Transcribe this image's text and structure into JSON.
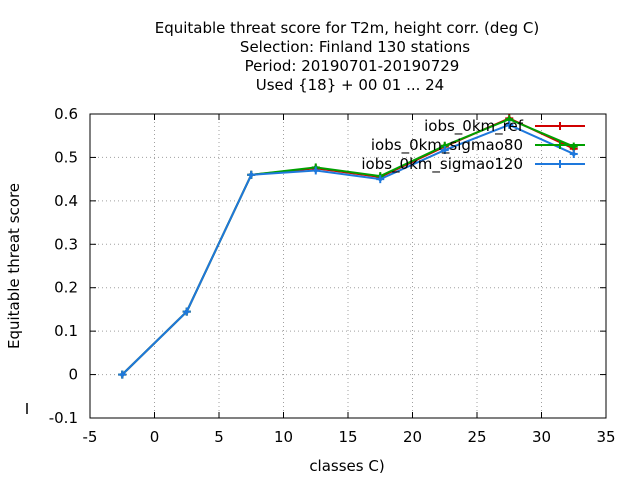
{
  "chart_data": {
    "type": "line",
    "title_lines": [
      "Equitable threat score  for T2m, height corr. (deg C)",
      "Selection: Finland    130 stations",
      "Period: 20190701-20190729",
      "Used {18} + 00 01 ... 24"
    ],
    "xlabel": "classes C)",
    "ylabel": "Equitable threat score",
    "xlim": [
      -5,
      35
    ],
    "ylim": [
      -0.1,
      0.6
    ],
    "xticks": [
      "-5",
      "0",
      "5",
      "10",
      "15",
      "20",
      "25",
      "30",
      "35"
    ],
    "yticks": [
      "-0.1",
      "0",
      "0.1",
      "0.2",
      "0.3",
      "0.4",
      "0.5",
      "0.6"
    ],
    "grid": true,
    "legend_position": "top-right",
    "series": [
      {
        "name": "iobs_0km_ref",
        "color": "#d00000",
        "x": [
          -2.5,
          2.5,
          7.5,
          12.5,
          17.5,
          22.5,
          27.5,
          32.5
        ],
        "y": [
          0.0,
          0.145,
          0.46,
          0.475,
          0.455,
          0.525,
          0.59,
          0.52
        ]
      },
      {
        "name": "iobs_0km_sigmao80",
        "color": "#00a000",
        "x": [
          -2.5,
          2.5,
          7.5,
          12.5,
          17.5,
          22.5,
          27.5,
          32.5
        ],
        "y": [
          0.0,
          0.145,
          0.46,
          0.477,
          0.457,
          0.527,
          0.588,
          0.525
        ]
      },
      {
        "name": "iobs_0km_sigmao120",
        "color": "#1e78dc",
        "x": [
          -2.5,
          2.5,
          7.5,
          12.5,
          17.5,
          22.5,
          27.5,
          32.5
        ],
        "y": [
          0.0,
          0.145,
          0.46,
          0.47,
          0.45,
          0.517,
          0.575,
          0.508
        ]
      }
    ]
  }
}
